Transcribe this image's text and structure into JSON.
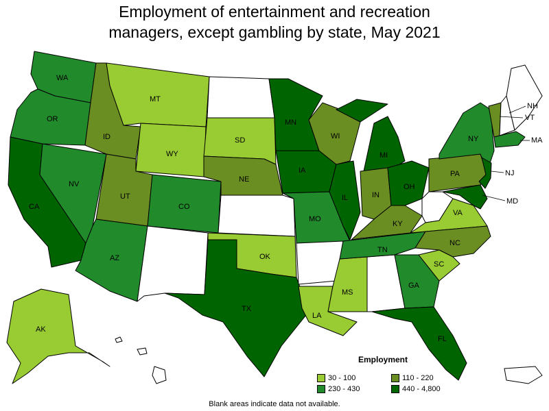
{
  "title_line1": "Employment of entertainment and recreation",
  "title_line2": "managers, except gambling by state, May 2021",
  "colors": {
    "c1": "#99cc33",
    "c2": "#218a2b",
    "c3": "#6b8e23",
    "c4": "#006400",
    "blank": "#ffffff"
  },
  "legend": {
    "title": "Employment",
    "items": [
      {
        "label": "30 - 100",
        "color": "#99cc33"
      },
      {
        "label": "110 - 220",
        "color": "#6b8e23"
      },
      {
        "label": "230 - 430",
        "color": "#218a2b"
      },
      {
        "label": "440 - 4,800",
        "color": "#006400"
      }
    ]
  },
  "note": "Blank areas indicate data not available.",
  "states": {
    "WA": "WA",
    "OR": "OR",
    "CA": "CA",
    "NV": "NV",
    "ID": "ID",
    "MT": "MT",
    "WY": "WY",
    "UT": "UT",
    "AZ": "AZ",
    "CO": "CO",
    "NM": "",
    "ND": "",
    "SD": "SD",
    "NE": "NE",
    "KS": "",
    "OK": "OK",
    "TX": "TX",
    "MN": "MN",
    "IA": "IA",
    "MO": "MO",
    "AR": "",
    "LA": "LA",
    "WI": "WI",
    "IL": "IL",
    "MS": "MS",
    "AL": "",
    "MI": "MI",
    "IN": "IN",
    "KY": "KY",
    "TN": "TN",
    "GA": "GA",
    "FL": "FL",
    "OH": "OH",
    "WV": "",
    "VA": "VA",
    "NC": "NC",
    "SC": "SC",
    "PA": "PA",
    "NY": "NY",
    "VT": "VT",
    "NH": "NH",
    "ME": "",
    "MA": "MA",
    "NJ": "NJ",
    "MD": "MD",
    "AK": "AK",
    "HI": "",
    "PR": ""
  }
}
